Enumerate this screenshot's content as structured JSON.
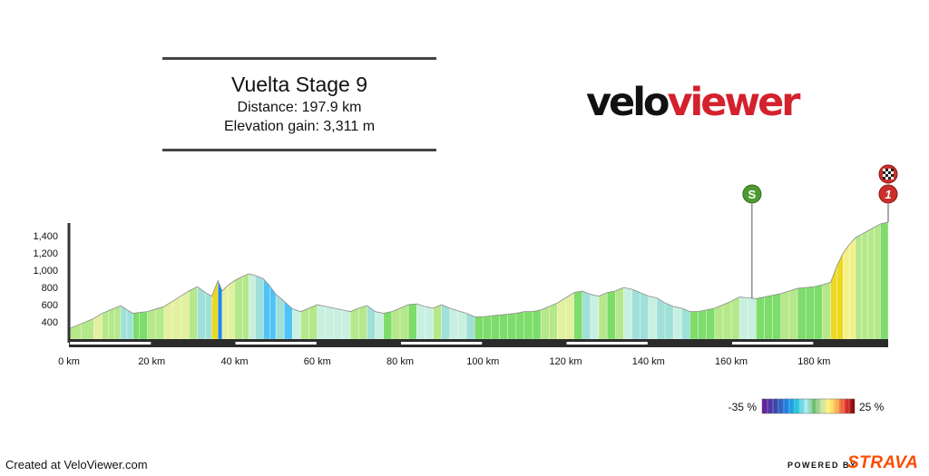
{
  "header": {
    "title": "Vuelta Stage 9",
    "distance_label": "Distance: 197.9 km",
    "elevation_label": "Elevation gain: 3,311 m"
  },
  "logo": {
    "part_black": "velo",
    "part_red": "viewer"
  },
  "footer": {
    "created": "Created at VeloViewer.com",
    "powered_by": "POWERED BY",
    "strava": "STRAVA"
  },
  "colors": {
    "accent_red": "#d3212d",
    "strava_orange": "#fc4c02",
    "sprint_green": "#4e9a34",
    "climb_red": "#c9302c"
  },
  "chart_data": {
    "type": "area",
    "title": "Vuelta Stage 9",
    "xlabel": "",
    "ylabel": "",
    "xlim": [
      0,
      197.9
    ],
    "ylim": [
      200,
      1550
    ],
    "x_ticks": [
      0,
      20,
      40,
      60,
      80,
      100,
      120,
      140,
      160,
      180
    ],
    "x_tick_labels": [
      "0 km",
      "20 km",
      "40 km",
      "60 km",
      "80 km",
      "100 km",
      "120 km",
      "140 km",
      "160 km",
      "180 km"
    ],
    "y_ticks": [
      400,
      600,
      800,
      1000,
      1200,
      1400
    ],
    "y_tick_labels": [
      "400",
      "600",
      "800",
      "1,000",
      "1,200",
      "1,400"
    ],
    "profile": {
      "x": [
        0,
        3,
        6,
        8,
        9.5,
        11,
        12.5,
        14,
        15.5,
        17,
        19,
        21,
        23,
        25,
        27,
        29,
        31,
        33,
        34.5,
        36,
        37,
        38.5,
        40,
        42,
        43.5,
        45,
        47,
        48.5,
        50,
        52,
        54,
        56,
        58,
        60,
        62,
        64,
        66,
        68,
        70,
        72,
        74,
        76,
        78,
        80,
        82,
        84,
        86,
        88,
        90,
        92,
        94,
        96,
        98,
        100,
        102,
        104,
        106,
        108,
        110,
        112,
        114,
        116,
        118,
        120,
        122,
        124,
        126,
        128,
        130,
        132,
        134,
        136,
        138,
        140,
        142,
        144,
        146,
        148,
        150,
        152,
        154,
        156,
        158,
        160,
        162,
        164,
        166,
        168,
        170,
        172,
        174,
        176,
        178,
        180,
        182,
        184,
        185.5,
        187,
        188.5,
        190,
        191.5,
        193,
        194.5,
        196,
        197.9
      ],
      "y": [
        320,
        380,
        440,
        500,
        530,
        560,
        590,
        540,
        500,
        510,
        520,
        550,
        580,
        640,
        700,
        760,
        810,
        740,
        700,
        880,
        760,
        830,
        880,
        930,
        960,
        940,
        900,
        820,
        720,
        640,
        550,
        520,
        560,
        600,
        580,
        560,
        540,
        520,
        560,
        590,
        520,
        500,
        520,
        560,
        600,
        610,
        580,
        560,
        600,
        560,
        530,
        500,
        460,
        460,
        470,
        480,
        490,
        500,
        520,
        520,
        540,
        580,
        620,
        680,
        740,
        760,
        720,
        700,
        740,
        760,
        800,
        780,
        740,
        700,
        680,
        620,
        580,
        560,
        520,
        520,
        540,
        560,
        600,
        640,
        690,
        680,
        670,
        690,
        710,
        730,
        760,
        790,
        800,
        810,
        830,
        860,
        1050,
        1200,
        1300,
        1380,
        1420,
        1460,
        1500,
        1540,
        1560
      ]
    },
    "gradient_legend": {
      "min_label": "-35 %",
      "max_label": "25 %"
    },
    "markers": [
      {
        "type": "sprint",
        "label": "S",
        "km": 165
      },
      {
        "type": "climb",
        "label": "1",
        "km": 197.9
      },
      {
        "type": "finish",
        "label": "",
        "km": 197.9
      }
    ]
  }
}
